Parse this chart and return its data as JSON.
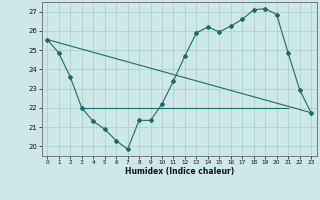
{
  "xlabel": "Humidex (Indice chaleur)",
  "bg_color": "#cde8e8",
  "line_color": "#1a6b6b",
  "grid_color": "#b0d0d0",
  "xlim": [
    -0.5,
    23.5
  ],
  "ylim": [
    19.5,
    27.5
  ],
  "yticks": [
    20,
    21,
    22,
    23,
    24,
    25,
    26,
    27
  ],
  "xticks": [
    0,
    1,
    2,
    3,
    4,
    5,
    6,
    7,
    8,
    9,
    10,
    11,
    12,
    13,
    14,
    15,
    16,
    17,
    18,
    19,
    20,
    21,
    22,
    23
  ],
  "line1_x": [
    0,
    1,
    2,
    3,
    4,
    5,
    6,
    7,
    8,
    9,
    10,
    11,
    12,
    13,
    14,
    15,
    16,
    17,
    18,
    19,
    20,
    21,
    22,
    23
  ],
  "line1_y": [
    25.55,
    24.85,
    23.6,
    22.0,
    21.3,
    20.9,
    20.3,
    19.85,
    21.35,
    21.35,
    22.2,
    23.4,
    24.7,
    25.9,
    26.2,
    25.95,
    26.25,
    26.6,
    27.1,
    27.15,
    26.85,
    24.85,
    22.95,
    21.75
  ],
  "line2_x": [
    0,
    23
  ],
  "line2_y": [
    25.55,
    21.75
  ],
  "line3_x": [
    3,
    21
  ],
  "line3_y": [
    22.0,
    22.0
  ]
}
